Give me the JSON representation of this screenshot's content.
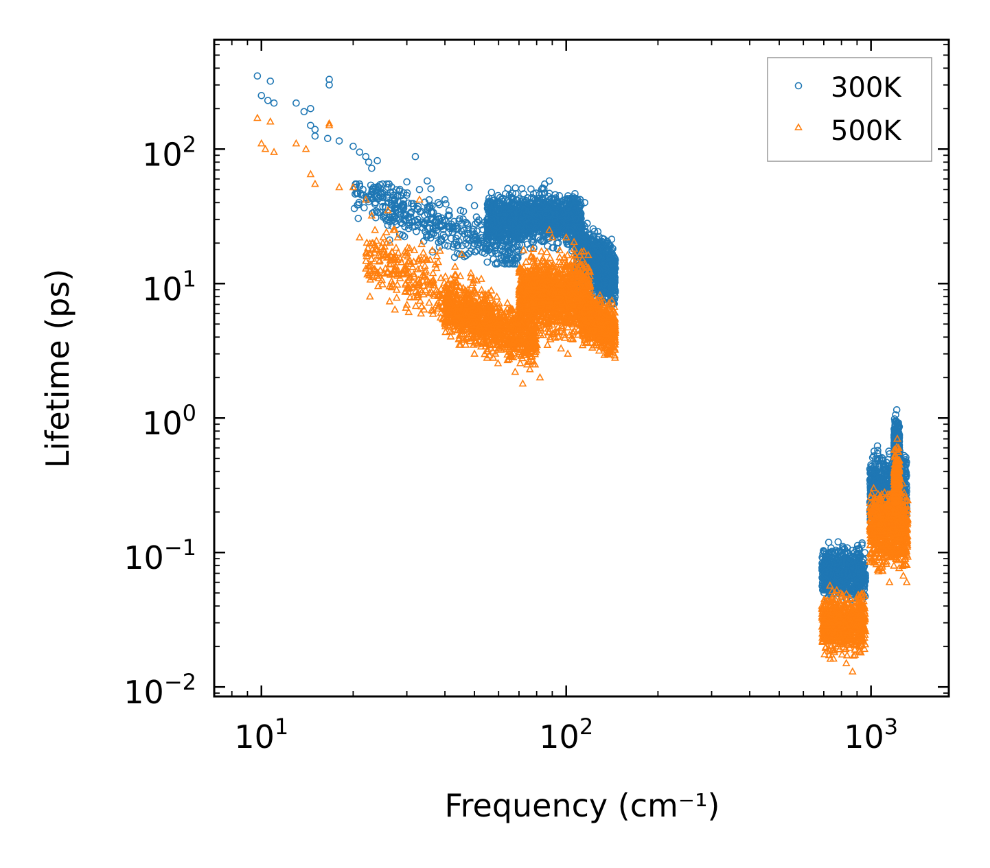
{
  "chart_data": {
    "type": "scatter",
    "xscale": "log",
    "yscale": "log",
    "xlabel": "Frequency (cm⁻¹)",
    "ylabel": "Lifetime (ps)",
    "xlim": [
      7,
      1800
    ],
    "ylim": [
      0.0085,
      650
    ],
    "x_ticks": [
      {
        "value": 10,
        "base": "10",
        "exp": "1"
      },
      {
        "value": 100,
        "base": "10",
        "exp": "2"
      },
      {
        "value": 1000,
        "base": "10",
        "exp": "3"
      }
    ],
    "y_ticks": [
      {
        "value": 0.01,
        "base": "10",
        "exp": "−2"
      },
      {
        "value": 0.1,
        "base": "10",
        "exp": "−1"
      },
      {
        "value": 1,
        "base": "10",
        "exp": "0"
      },
      {
        "value": 10,
        "base": "10",
        "exp": "1"
      },
      {
        "value": 100,
        "base": "10",
        "exp": "2"
      }
    ],
    "legend_position": "top-right",
    "series": [
      {
        "name": "300K",
        "marker": "circle",
        "color": "#1f77b4",
        "points": [
          [
            9.7,
            350
          ],
          [
            10.0,
            250
          ],
          [
            10.5,
            230
          ],
          [
            10.7,
            320
          ],
          [
            11.0,
            220
          ],
          [
            13.0,
            220
          ],
          [
            13.8,
            190
          ],
          [
            14.5,
            200
          ],
          [
            14.5,
            150
          ],
          [
            15.0,
            140
          ],
          [
            15.0,
            125
          ],
          [
            16.5,
            120
          ],
          [
            16.7,
            300
          ],
          [
            16.7,
            330
          ],
          [
            18.0,
            115
          ],
          [
            20.0,
            105
          ],
          [
            21.0,
            95
          ],
          [
            22.0,
            88
          ],
          [
            22.5,
            80
          ],
          [
            23.0,
            72
          ],
          [
            24.0,
            82
          ],
          [
            25.0,
            55
          ],
          [
            26.0,
            52
          ],
          [
            27.0,
            48
          ],
          [
            28.0,
            45
          ],
          [
            30.0,
            57
          ],
          [
            32.0,
            88
          ],
          [
            33.0,
            50
          ],
          [
            35.0,
            58
          ],
          [
            38.0,
            40
          ],
          [
            40.0,
            42
          ],
          [
            45.0,
            35
          ],
          [
            48.0,
            52
          ],
          [
            50.0,
            38
          ],
          [
            55.0,
            30
          ],
          [
            58.0,
            37
          ],
          [
            62.0,
            43
          ],
          [
            70.0,
            28
          ],
          [
            80.0,
            40
          ],
          [
            85.0,
            55
          ],
          [
            88.0,
            58
          ],
          [
            95.0,
            45
          ],
          [
            105.0,
            42
          ],
          [
            115.0,
            40
          ],
          [
            125.0,
            20
          ],
          [
            135.0,
            11
          ],
          [
            142.0,
            7
          ],
          [
            700,
            0.08
          ],
          [
            740,
            0.1
          ],
          [
            780,
            0.12
          ],
          [
            820,
            0.09
          ],
          [
            860,
            0.07
          ],
          [
            900,
            0.075
          ],
          [
            1000,
            0.25
          ],
          [
            1050,
            0.62
          ],
          [
            1100,
            0.45
          ],
          [
            1150,
            0.35
          ],
          [
            1200,
            0.9
          ],
          [
            1215,
            1.15
          ],
          [
            1250,
            0.5
          ],
          [
            1300,
            0.15
          ]
        ],
        "clusters": [
          {
            "x": [
              20,
              70
            ],
            "y": [
              14,
              55
            ],
            "center_y": 28,
            "slope": -0.8,
            "n": 420
          },
          {
            "x": [
              55,
              112
            ],
            "y": [
              16,
              55
            ],
            "center_y": 30,
            "slope": 0.0,
            "n": 1400
          },
          {
            "x": [
              108,
              145
            ],
            "y": [
              6,
              30
            ],
            "center_y": 14,
            "slope": -1.6,
            "n": 900
          },
          {
            "x": [
              690,
              960
            ],
            "y": [
              0.035,
              0.13
            ],
            "center_y": 0.07,
            "slope": 0.0,
            "n": 700
          },
          {
            "x": [
              990,
              1310
            ],
            "y": [
              0.1,
              0.65
            ],
            "center_y": 0.28,
            "slope": 0.0,
            "n": 800
          },
          {
            "x": [
              1190,
              1240
            ],
            "y": [
              0.3,
              1.1
            ],
            "center_y": 0.65,
            "slope": 0.0,
            "n": 250
          }
        ]
      },
      {
        "name": "500K",
        "marker": "triangle",
        "color": "#ff7f0e",
        "points": [
          [
            9.7,
            170
          ],
          [
            10.0,
            110
          ],
          [
            10.3,
            100
          ],
          [
            10.7,
            160
          ],
          [
            11.0,
            95
          ],
          [
            13.0,
            110
          ],
          [
            14.0,
            100
          ],
          [
            14.5,
            65
          ],
          [
            15.0,
            55
          ],
          [
            16.7,
            150
          ],
          [
            16.7,
            155
          ],
          [
            18.0,
            52
          ],
          [
            20.0,
            52
          ],
          [
            21.0,
            22
          ],
          [
            22.0,
            42
          ],
          [
            23.0,
            32
          ],
          [
            24.0,
            18
          ],
          [
            25.0,
            20
          ],
          [
            26.0,
            35
          ],
          [
            28.0,
            22
          ],
          [
            30.0,
            12
          ],
          [
            32.0,
            10
          ],
          [
            33.0,
            42
          ],
          [
            35.0,
            15
          ],
          [
            40.0,
            5
          ],
          [
            45.0,
            3.5
          ],
          [
            50.0,
            3.0
          ],
          [
            55.0,
            2.8
          ],
          [
            60.0,
            3.5
          ],
          [
            68.0,
            2.2
          ],
          [
            72.0,
            1.8
          ],
          [
            76.0,
            2.3
          ],
          [
            82.0,
            2.0
          ],
          [
            88.0,
            25
          ],
          [
            90.0,
            22
          ],
          [
            100.0,
            22
          ],
          [
            110.0,
            12
          ],
          [
            125.0,
            7
          ],
          [
            140.0,
            3.2
          ],
          [
            690,
            0.04
          ],
          [
            760,
            0.05
          ],
          [
            800,
            0.035
          ],
          [
            830,
            0.015
          ],
          [
            870,
            0.013
          ],
          [
            900,
            0.03
          ],
          [
            950,
            0.04
          ],
          [
            1020,
            0.3
          ],
          [
            1060,
            0.12
          ],
          [
            1150,
            0.06
          ],
          [
            1220,
            0.7
          ],
          [
            1280,
            0.08
          ],
          [
            1310,
            0.06
          ]
        ],
        "clusters": [
          {
            "x": [
              22,
              60
            ],
            "y": [
              3.5,
              25
            ],
            "center_y": 9,
            "slope": -1.2,
            "n": 400
          },
          {
            "x": [
              40,
              80
            ],
            "y": [
              2.5,
              12
            ],
            "center_y": 5,
            "slope": -0.8,
            "n": 900
          },
          {
            "x": [
              70,
              120
            ],
            "y": [
              3.0,
              25
            ],
            "center_y": 8,
            "slope": 0.0,
            "n": 1300
          },
          {
            "x": [
              112,
              145
            ],
            "y": [
              2.8,
              12
            ],
            "center_y": 5,
            "slope": -1.2,
            "n": 700
          },
          {
            "x": [
              690,
              960
            ],
            "y": [
              0.015,
              0.06
            ],
            "center_y": 0.03,
            "slope": 0.0,
            "n": 700
          },
          {
            "x": [
              990,
              1320
            ],
            "y": [
              0.06,
              0.45
            ],
            "center_y": 0.15,
            "slope": 0.0,
            "n": 800
          },
          {
            "x": [
              1190,
              1240
            ],
            "y": [
              0.15,
              0.7
            ],
            "center_y": 0.35,
            "slope": 0.0,
            "n": 250
          }
        ]
      }
    ]
  }
}
